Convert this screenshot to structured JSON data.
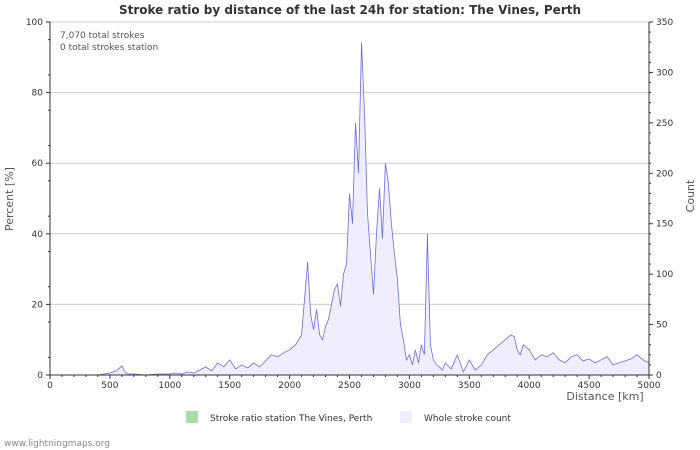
{
  "chart_data": {
    "type": "area",
    "title": "Stroke ratio by distance of the last 24h for station: The Vines, Perth",
    "xlabel": "Distance   [km]",
    "ylabel_left": "Percent   [%]",
    "ylabel_right": "Count",
    "xlim": [
      0,
      5000
    ],
    "ylim_left": [
      0,
      100
    ],
    "ylim_right": [
      0,
      350
    ],
    "x_ticks": [
      "0",
      "500",
      "1000",
      "1500",
      "2000",
      "2500",
      "3000",
      "3500",
      "4000",
      "4500",
      "5000"
    ],
    "y_left_ticks": [
      "0",
      "20",
      "40",
      "60",
      "80",
      "100"
    ],
    "y_right_ticks": [
      "0",
      "50",
      "100",
      "150",
      "200",
      "250",
      "300",
      "350"
    ],
    "grid": true,
    "annotations": [
      "7,070 total strokes",
      "0 total strokes station"
    ],
    "legend_position": "bottom",
    "series": [
      {
        "name": "Stroke ratio station The Vines, Perth",
        "axis": "left",
        "color": "#a8dba8",
        "x": [],
        "values": []
      },
      {
        "name": "Whole stroke count",
        "axis": "right",
        "color": "#6c6cdc",
        "fill": "#eeeeff",
        "x": [
          0,
          100,
          200,
          300,
          400,
          450,
          500,
          550,
          600,
          625,
          650,
          700,
          800,
          900,
          1000,
          1050,
          1100,
          1150,
          1200,
          1250,
          1300,
          1350,
          1400,
          1450,
          1500,
          1550,
          1600,
          1650,
          1700,
          1750,
          1800,
          1850,
          1900,
          1950,
          2000,
          2050,
          2100,
          2150,
          2175,
          2200,
          2225,
          2250,
          2275,
          2300,
          2325,
          2350,
          2375,
          2400,
          2425,
          2450,
          2475,
          2500,
          2525,
          2550,
          2575,
          2600,
          2625,
          2650,
          2675,
          2700,
          2725,
          2750,
          2775,
          2800,
          2825,
          2850,
          2875,
          2900,
          2925,
          2950,
          2975,
          3000,
          3025,
          3050,
          3075,
          3100,
          3125,
          3150,
          3175,
          3200,
          3225,
          3250,
          3275,
          3300,
          3350,
          3400,
          3450,
          3500,
          3550,
          3600,
          3650,
          3700,
          3750,
          3800,
          3850,
          3875,
          3900,
          3925,
          3950,
          4000,
          4050,
          4100,
          4150,
          4200,
          4250,
          4300,
          4350,
          4400,
          4450,
          4500,
          4550,
          4600,
          4650,
          4700,
          4750,
          4800,
          4850,
          4900,
          4950,
          5000
        ],
        "values": [
          0,
          0,
          0,
          0,
          0,
          1,
          2,
          4,
          9,
          3,
          1,
          1,
          0,
          1,
          1,
          2,
          1,
          3,
          2,
          5,
          8,
          4,
          12,
          8,
          15,
          6,
          10,
          7,
          12,
          8,
          14,
          20,
          18,
          22,
          25,
          30,
          40,
          112,
          60,
          45,
          65,
          40,
          35,
          48,
          55,
          70,
          85,
          90,
          68,
          100,
          110,
          180,
          150,
          250,
          200,
          330,
          260,
          160,
          120,
          80,
          140,
          185,
          135,
          210,
          190,
          150,
          120,
          95,
          50,
          35,
          15,
          20,
          10,
          25,
          12,
          30,
          20,
          140,
          30,
          15,
          10,
          8,
          5,
          12,
          6,
          20,
          3,
          15,
          5,
          10,
          20,
          25,
          30,
          35,
          40,
          38,
          25,
          20,
          30,
          25,
          15,
          20,
          18,
          22,
          15,
          12,
          18,
          20,
          14,
          16,
          12,
          15,
          18,
          10,
          12,
          14,
          16,
          20,
          15,
          12
        ]
      }
    ]
  },
  "footer": "www.lightningmaps.org"
}
